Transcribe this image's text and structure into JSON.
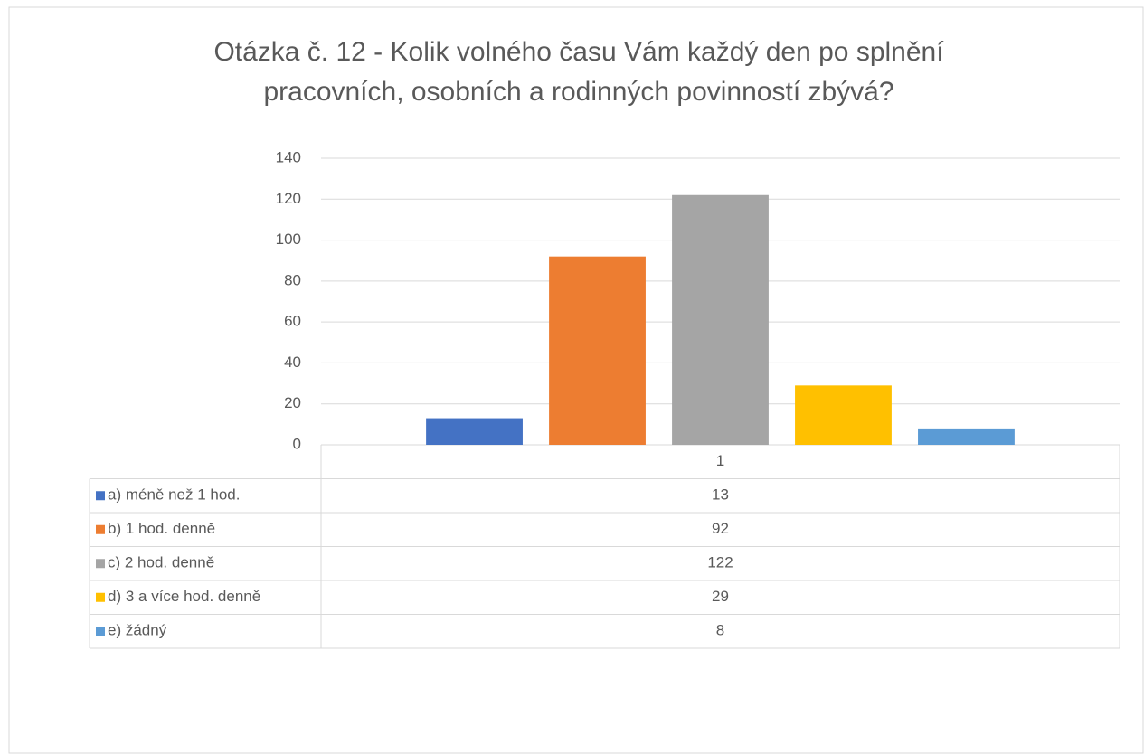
{
  "chart_data": {
    "type": "bar",
    "title": "Otázka č. 12 - Kolik volného času Vám každý den po splnění pracovních, osobních a rodinných povinností zbývá?",
    "categories": [
      "1"
    ],
    "series": [
      {
        "name": "a) méně než 1 hod.",
        "color": "#4472c4",
        "values": [
          13
        ]
      },
      {
        "name": "b) 1 hod. denně",
        "color": "#ed7d31",
        "values": [
          92
        ]
      },
      {
        "name": "c) 2 hod. denně",
        "color": "#a5a5a5",
        "values": [
          122
        ]
      },
      {
        "name": "d) 3 a více hod. denně",
        "color": "#ffc000",
        "values": [
          29
        ]
      },
      {
        "name": "e) žádný",
        "color": "#5b9bd5",
        "values": [
          8
        ]
      }
    ],
    "ylim": [
      0,
      140
    ],
    "yticks": [
      0,
      20,
      40,
      60,
      80,
      100,
      120,
      140
    ],
    "grid": true
  }
}
